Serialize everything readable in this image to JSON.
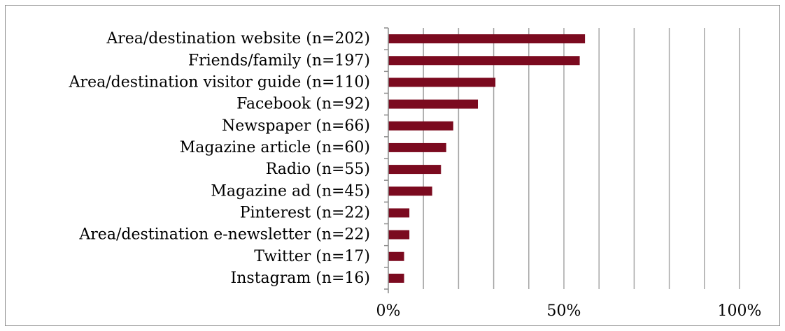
{
  "chart_data": {
    "type": "bar",
    "orientation": "horizontal",
    "categories": [
      "Area/destination website (n=202)",
      "Friends/family (n=197)",
      "Area/destination visitor guide (n=110)",
      "Facebook (n=92)",
      "Newspaper (n=66)",
      "Magazine article (n=60)",
      "Radio (n=55)",
      "Magazine ad (n=45)",
      "Pinterest (n=22)",
      "Area/destination e-newsletter (n=22)",
      "Twitter (n=17)",
      "Instagram (n=16)"
    ],
    "values": [
      56,
      54.5,
      30.5,
      25.5,
      18.5,
      16.5,
      15,
      12.5,
      6,
      6,
      4.5,
      4.5
    ],
    "xlim": [
      0,
      100
    ],
    "x_ticks": [
      {
        "value": 0,
        "label": "0%"
      },
      {
        "value": 50,
        "label": "50%"
      },
      {
        "value": 100,
        "label": "100%"
      }
    ],
    "gridlines": true,
    "gridline_step": 10,
    "title": "",
    "xlabel": "",
    "ylabel": "",
    "colors": {
      "bar": "#7b0a1f",
      "grid": "#a6a6a6",
      "axis": "#8c8c8c"
    }
  }
}
